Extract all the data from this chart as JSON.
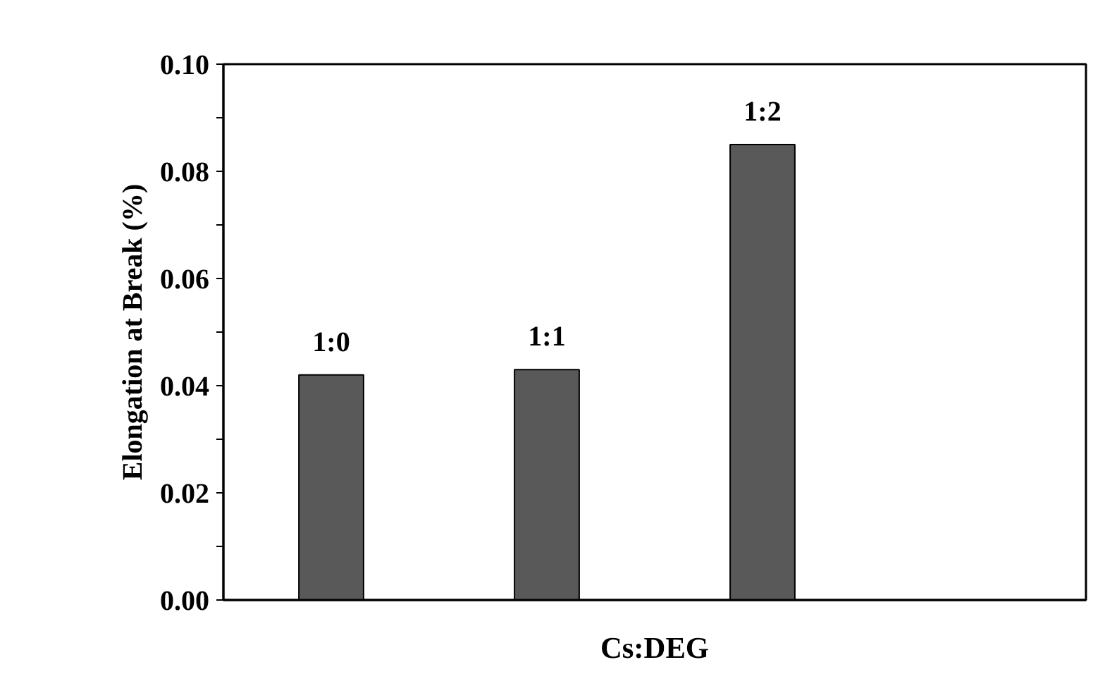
{
  "chart_data": {
    "type": "bar",
    "xlabel": "Cs:DEG",
    "ylabel": "Elongation at Break (%)",
    "categories": [
      "1:0",
      "1:1",
      "1:2",
      null
    ],
    "values": [
      0.042,
      0.043,
      0.085,
      null
    ],
    "color": "#595959",
    "ylim": [
      0,
      0.1
    ],
    "yticks": [
      {
        "value": 0,
        "label": "0.00"
      },
      {
        "value": 0.01,
        "label": null
      },
      {
        "value": 0.02,
        "label": "0.02"
      },
      {
        "value": 0.03,
        "label": null
      },
      {
        "value": 0.04,
        "label": "0.04"
      },
      {
        "value": 0.05,
        "label": null
      },
      {
        "value": 0.06,
        "label": "0.06"
      },
      {
        "value": 0.07,
        "label": null
      },
      {
        "value": 0.08,
        "label": "0.08"
      },
      {
        "value": 0.09,
        "label": null
      },
      {
        "value": 0.1,
        "label": "0.10"
      }
    ],
    "tick_labels": "y"
  }
}
